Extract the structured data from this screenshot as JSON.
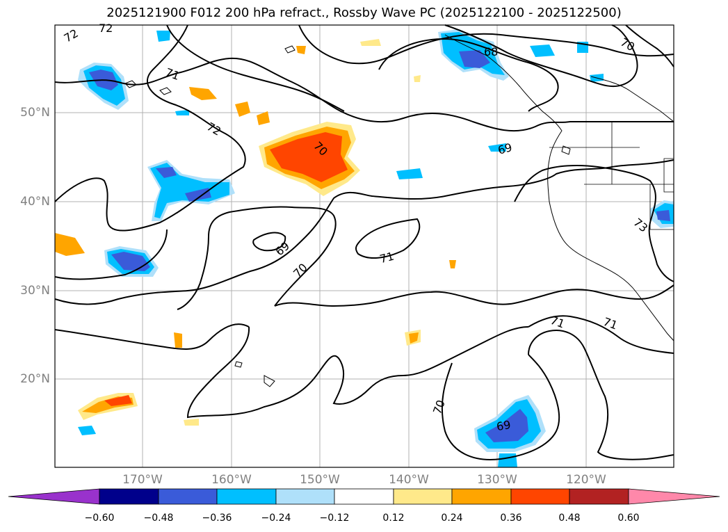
{
  "title": "2025121900 F012 200 hPa refract., Rossby Wave PC (2025122100 - 2025122500)",
  "lat_labels": [
    "50°N",
    "40°N",
    "30°N",
    "20°N"
  ],
  "lon_labels": [
    "170°W",
    "160°W",
    "150°W",
    "140°W",
    "130°W",
    "120°W"
  ],
  "contour_labels": [
    "72",
    "72",
    "71",
    "72",
    "70",
    "68",
    "70",
    "69",
    "69",
    "70",
    "71",
    "73",
    "71",
    "71",
    "70",
    "69"
  ],
  "colorbar": {
    "ticks": [
      "−0.60",
      "−0.48",
      "−0.36",
      "−0.24",
      "−0.12",
      "0.12",
      "0.24",
      "0.36",
      "0.48",
      "0.60"
    ],
    "colors": [
      "#9932cc",
      "#00008b",
      "#3a5bd9",
      "#00bfff",
      "#afe0fa",
      "#ffffff",
      "#ffe98a",
      "#ffa500",
      "#ff4500",
      "#b22222",
      "#ff88aa"
    ]
  }
}
